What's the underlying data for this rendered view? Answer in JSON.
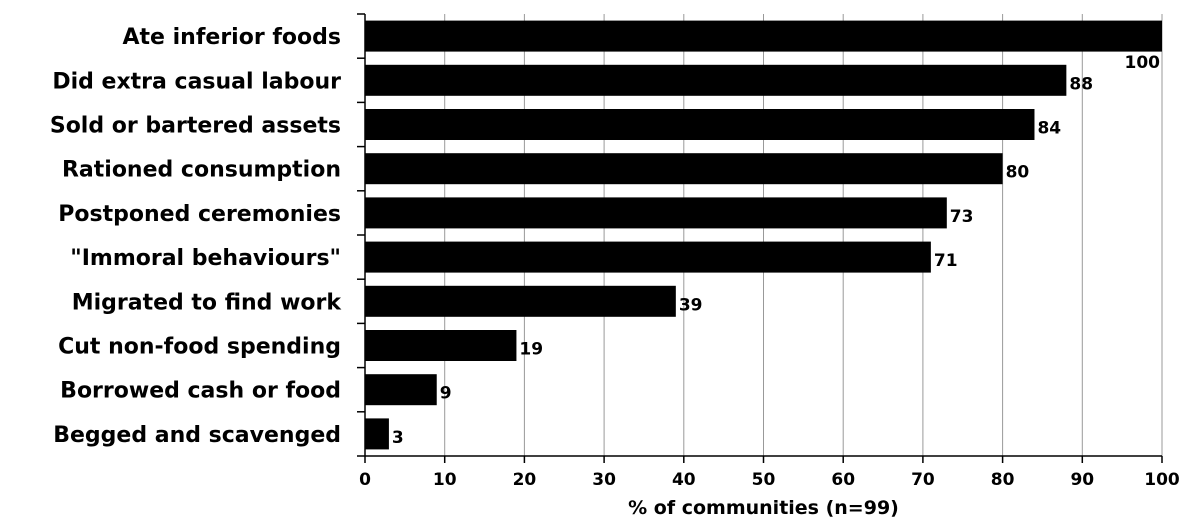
{
  "chart_data": {
    "type": "bar",
    "orientation": "horizontal",
    "categories": [
      "Ate inferior foods",
      "Did extra casual labour",
      "Sold or bartered assets",
      "Rationed consumption",
      "Postponed ceremonies",
      "\"Immoral behaviours\"",
      "Migrated to find work",
      "Cut non-food spending",
      "Borrowed cash or food",
      "Begged and scavenged"
    ],
    "values": [
      100,
      88,
      84,
      80,
      73,
      71,
      39,
      19,
      9,
      3
    ],
    "title": "",
    "xlabel": "% of communities (n=99)",
    "ylabel": "",
    "xlim": [
      0,
      100
    ],
    "xticks": [
      0,
      10,
      20,
      30,
      40,
      50,
      60,
      70,
      80,
      90,
      100
    ],
    "grid": "vertical",
    "legend": "none",
    "bar_color": "#000000",
    "grid_color": "#999999"
  }
}
